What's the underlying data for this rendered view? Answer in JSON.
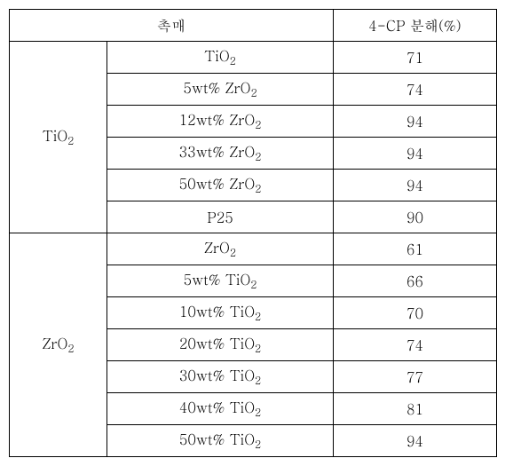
{
  "header": {
    "catalyst": "촉매",
    "decomposition": "4-CP 분해(%)"
  },
  "groups": [
    {
      "label_html": "TiO<sub>2</sub>",
      "rows": [
        {
          "variant_html": "TiO<sub>2</sub>",
          "value": "71"
        },
        {
          "variant_html": "5wt% ZrO<sub>2</sub>",
          "value": "74"
        },
        {
          "variant_html": "12wt% ZrO<sub>2</sub>",
          "value": "94"
        },
        {
          "variant_html": "33wt% ZrO<sub>2</sub>",
          "value": "94"
        },
        {
          "variant_html": "50wt% ZrO<sub>2</sub>",
          "value": "94"
        },
        {
          "variant_html": "P25",
          "value": "90"
        }
      ]
    },
    {
      "label_html": "ZrO<sub>2</sub>",
      "rows": [
        {
          "variant_html": "ZrO<sub>2</sub>",
          "value": "61"
        },
        {
          "variant_html": "5wt% TiO<sub>2</sub>",
          "value": "66"
        },
        {
          "variant_html": "10wt% TiO<sub>2</sub>",
          "value": "70"
        },
        {
          "variant_html": "20wt% TiO<sub>2</sub>",
          "value": "74"
        },
        {
          "variant_html": "30wt% TiO<sub>2</sub>",
          "value": "77"
        },
        {
          "variant_html": "40wt% TiO<sub>2</sub>",
          "value": "81"
        },
        {
          "variant_html": "50wt% TiO<sub>2</sub>",
          "value": "94"
        }
      ]
    }
  ]
}
